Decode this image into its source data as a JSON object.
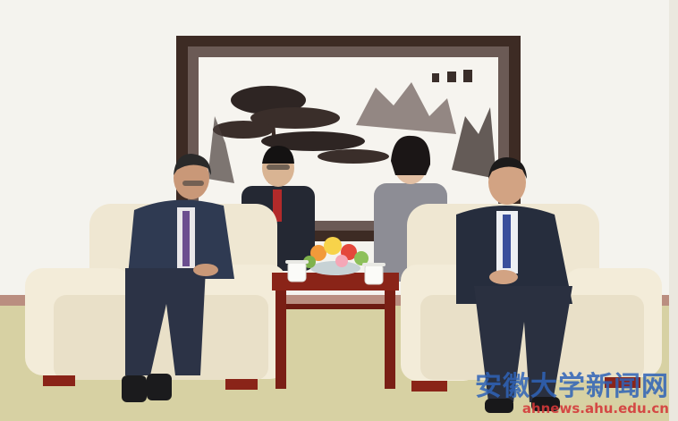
{
  "photo": {
    "description_free": true,
    "palette": {
      "wall": "#f4f3ee",
      "carpet": "#d7d1a3",
      "sofa": "#efe7d2",
      "frame": "#3d2b24",
      "table": "#8a2418",
      "suit": "#2b3240",
      "grey_jacket": "#8d8d95"
    }
  },
  "watermark": {
    "chinese": "安徽大学新闻网",
    "url": "ahnews.ahu.edu.cn",
    "color_cn": "#2f63b8",
    "color_url": "#d43a3a"
  }
}
